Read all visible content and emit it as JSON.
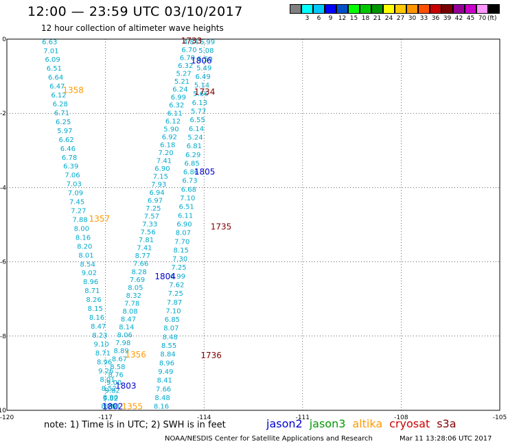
{
  "header": {
    "title": "12:00 — 23:59 UTC 03/10/2017",
    "subtitle": "12 hour collection of altimeter wave heights"
  },
  "colorbar": {
    "colors": [
      "#808080",
      "#00ffff",
      "#00c8ff",
      "#0000ff",
      "#0050c8",
      "#00ff00",
      "#00c800",
      "#009600",
      "#ffff00",
      "#ffc800",
      "#ff9600",
      "#ff5000",
      "#c80000",
      "#780000",
      "#960096",
      "#c800c8",
      "#ff96ff",
      "#000000"
    ],
    "labels": [
      "3",
      "6",
      "9",
      "12",
      "15",
      "18",
      "21",
      "24",
      "27",
      "30",
      "33",
      "36",
      "39",
      "42",
      "45",
      "70"
    ],
    "unit": "(ft)"
  },
  "note": "note: 1) Time is in UTC; 2) SWH is in feet",
  "legend": [
    {
      "name": "jason2",
      "color": "#0000cc"
    },
    {
      "name": "jason3",
      "color": "#009900"
    },
    {
      "name": "altika",
      "color": "#ff9900"
    },
    {
      "name": "cryosat",
      "color": "#cc0000"
    },
    {
      "name": "s3a",
      "color": "#800000"
    }
  ],
  "credit": "NOAA/NESDIS Center for Satellite Applications and Research",
  "timestamp": "Mar 11 13:28:06 UTC 2017",
  "chart_data": {
    "type": "scatter",
    "xlim": [
      -120,
      -105
    ],
    "ylim": [
      -10,
      0
    ],
    "x_ticks": [
      -120,
      -117,
      -114,
      -111,
      -108,
      -105
    ],
    "y_ticks": [
      0,
      -2,
      -4,
      -6,
      -8,
      -10
    ],
    "grid": true,
    "pass_labels": [
      {
        "text": "1733",
        "x": -114.7,
        "y": -0.05,
        "color": "#800000"
      },
      {
        "text": "1806",
        "x": -114.4,
        "y": -0.58,
        "color": "#0000cc"
      },
      {
        "text": "1734",
        "x": -114.3,
        "y": -1.42,
        "color": "#800000"
      },
      {
        "text": "1358",
        "x": -118.3,
        "y": -1.38,
        "color": "#ff9900"
      },
      {
        "text": "1805",
        "x": -114.3,
        "y": -3.58,
        "color": "#0000cc"
      },
      {
        "text": "1357",
        "x": -117.5,
        "y": -4.84,
        "color": "#ff9900"
      },
      {
        "text": "1735",
        "x": -113.8,
        "y": -5.06,
        "color": "#800000"
      },
      {
        "text": "1804",
        "x": -115.5,
        "y": -6.4,
        "color": "#0000cc"
      },
      {
        "text": "1356",
        "x": -116.4,
        "y": -8.5,
        "color": "#ff9900"
      },
      {
        "text": "1736",
        "x": -114.1,
        "y": -8.52,
        "color": "#800000"
      },
      {
        "text": "1803",
        "x": -116.7,
        "y": -9.34,
        "color": "#0000cc"
      },
      {
        "text": "1802",
        "x": -117.1,
        "y": -9.9,
        "color": "#0000cc"
      },
      {
        "text": "1355",
        "x": -116.5,
        "y": -9.9,
        "color": "#ff9900"
      }
    ],
    "tracks": [
      {
        "name": "1358 / 1357 / 1356 / 1355",
        "color": "#00aacc",
        "start": [
          -118.7,
          -0.08
        ],
        "end": [
          -116.8,
          -9.9
        ],
        "values": [
          "6.63",
          "7.01",
          "6.09",
          "6.51",
          "6.64",
          "6.47",
          "6.12",
          "6.28",
          "6.71",
          "6.25",
          "5.97",
          "6.62",
          "6.46",
          "6.78",
          "6.39",
          "7.06",
          "7.03",
          "7.09",
          "7.45",
          "7.27",
          "7.88",
          "8.00",
          "8.16",
          "8.20",
          "8.01",
          "8.54",
          "9.02",
          "8.96",
          "8.71",
          "8.26",
          "8.15",
          "8.16",
          "8.47",
          "8.23",
          "9.10",
          "8.71",
          "8.96",
          "9.26",
          "8.01",
          "8.52",
          "8.90",
          "8.63"
        ]
      },
      {
        "name": "1806 / 1805 / 1804 / 1803 / 1802",
        "color": "#00aacc",
        "start": [
          -114.4,
          -0.08
        ],
        "end": [
          -116.9,
          -9.9
        ],
        "values": [
          "4.84",
          "6.70",
          "6.70",
          "6.32",
          "5.27",
          "5.21",
          "6.24",
          "6.99",
          "6.32",
          "6.11",
          "6.12",
          "5.90",
          "6.92",
          "6.18",
          "7.20",
          "7.41",
          "6.90",
          "7.15",
          "7.93",
          "6.94",
          "6.97",
          "7.25",
          "7.57",
          "7.33",
          "7.56",
          "7.81",
          "7.41",
          "8.77",
          "7.66",
          "8.28",
          "7.69",
          "8.05",
          "8.32",
          "7.78",
          "8.08",
          "8.47",
          "8.14",
          "8.06",
          "7.98",
          "8.89",
          "8.67",
          "8.58",
          "8.76",
          "9.00",
          "9.82",
          "9.02",
          "8.79"
        ]
      },
      {
        "name": "1733 / 1734 / 1735 / 1736",
        "color": "#00aacc",
        "start": [
          -113.9,
          -0.08
        ],
        "end": [
          -115.3,
          -9.9
        ],
        "values": [
          "6.99",
          "5.08",
          "5.59",
          "5.49",
          "6.49",
          "5.14",
          "5.66",
          "6.13",
          "5.77",
          "6.55",
          "6.14",
          "5.24",
          "6.81",
          "6.29",
          "6.85",
          "6.86",
          "6.73",
          "6.68",
          "7.10",
          "6.51",
          "6.11",
          "6.90",
          "8.07",
          "7.70",
          "8.15",
          "7.30",
          "7.25",
          "6.99",
          "7.62",
          "7.25",
          "7.87",
          "7.10",
          "6.85",
          "8.07",
          "8.48",
          "8.55",
          "8.84",
          "8.96",
          "9.49",
          "8.41",
          "7.66",
          "8.48",
          "8.16"
        ]
      }
    ]
  }
}
